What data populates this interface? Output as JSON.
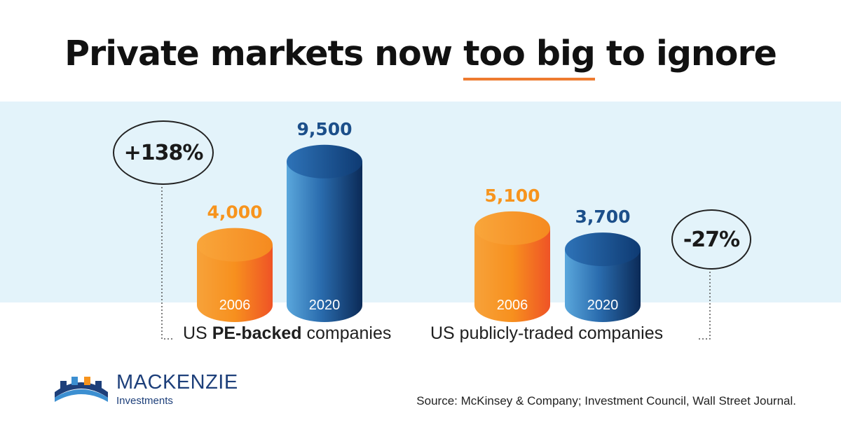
{
  "title": {
    "before": "Private markets now ",
    "highlight": "too big",
    "after": " to ignore"
  },
  "colors": {
    "accent_orange": "#f7941d",
    "orange_dark": "#f05a28",
    "blue_value": "#1c4f8a",
    "blue_dark": "#0b2e5e",
    "band": "#e3f3fa"
  },
  "chart_data": {
    "type": "bar",
    "style": "3d-cylinder",
    "groups": [
      {
        "label_prefix": "US ",
        "label_bold": "PE-backed",
        "label_suffix": " companies",
        "change": "+138%",
        "bars": [
          {
            "year": "2006",
            "value": 4000,
            "value_label": "4,000",
            "color": "orange"
          },
          {
            "year": "2020",
            "value": 9500,
            "value_label": "9,500",
            "color": "blue"
          }
        ]
      },
      {
        "label_prefix": "US publicly-traded companies",
        "label_bold": "",
        "label_suffix": "",
        "change": "-27%",
        "bars": [
          {
            "year": "2006",
            "value": 5100,
            "value_label": "5,100",
            "color": "orange"
          },
          {
            "year": "2020",
            "value": 3700,
            "value_label": "3,700",
            "color": "blue"
          }
        ]
      }
    ]
  },
  "logo": {
    "name": "MACKENZIE",
    "sub": "Investments"
  },
  "source": "Source: McKinsey & Company; Investment Council, Wall Street Journal."
}
